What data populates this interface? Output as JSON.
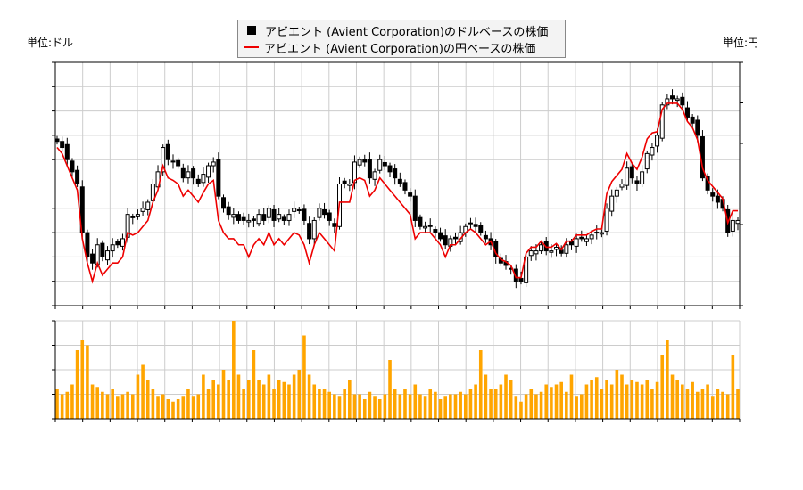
{
  "chart_data": {
    "type": "candlestick+line+bar",
    "legend": {
      "position": "top-center",
      "entries": [
        "アビエント (Avient Corporation)のドルベースの株価",
        "アビエント (Avient Corporation)の円ベースの株価"
      ]
    },
    "left_unit": "単位:ドル",
    "right_unit": "単位:円",
    "colors": {
      "candle": "#000000",
      "yen_line": "#ee0000",
      "volume": "#ffa500",
      "grid": "#cccccc"
    },
    "grid": true,
    "usd_axis": {
      "ylim": [
        26,
        46
      ],
      "ticks": [
        "26",
        "28",
        "30",
        "32",
        "34",
        "36",
        "38",
        "40",
        "42",
        "44",
        "46"
      ]
    },
    "yen_axis": {
      "ylim": [
        4000,
        7000
      ],
      "ticks": [
        "4000",
        "4500",
        "5000",
        "5500",
        "6000",
        "6500",
        "7000"
      ]
    },
    "volume_axis": {
      "ylim": [
        0,
        2000000
      ],
      "ticks": [
        "0M",
        "0M",
        "0M",
        "1M",
        "2M"
      ]
    },
    "x_ticks": [
      "2025-3-24",
      "2025-4-7",
      "2025-4-22",
      "2025-5-6",
      "2025-5-20",
      "2025-6-4",
      "2025-6-18",
      "2025-7-3",
      "2025-7-18",
      "2025-8-1",
      "2025-8-15",
      "2025-8-29",
      "2025-9-15",
      "2025-9-29",
      "2025-10-13",
      "2025-10-27",
      "2025-11-10",
      "2025-11-24",
      "2025-12-9",
      "2025-12-23",
      "2026-1-8",
      "2026-1-23",
      "2026-2-6",
      "2026-2-23",
      "2026-3-9",
      "2026-3-23"
    ],
    "usd_close": [
      39.5,
      39,
      38,
      37,
      36,
      32,
      30,
      29.5,
      31,
      30,
      30.5,
      31,
      31,
      31.5,
      33.5,
      33.3,
      33.5,
      34,
      34.5,
      36,
      37,
      39,
      38,
      37.8,
      37.5,
      36.5,
      37,
      36.5,
      36,
      36.8,
      37.5,
      37.8,
      35,
      34,
      33.5,
      33.5,
      33,
      33,
      33,
      33,
      33.5,
      33,
      34,
      33,
      33.5,
      33,
      33.5,
      34,
      33.8,
      33,
      31.5,
      33,
      34,
      33.5,
      33,
      32.5,
      36,
      36,
      36,
      37.8,
      38,
      37.8,
      36.5,
      37,
      38,
      37.5,
      37,
      36.5,
      36,
      35.5,
      35,
      33,
      32.5,
      32.5,
      32.5,
      32,
      31.5,
      31,
      31.5,
      31.5,
      32,
      32.5,
      32.8,
      32.5,
      32,
      31.5,
      31,
      30,
      29.5,
      29.3,
      29,
      28,
      28,
      30,
      30.5,
      30.5,
      31,
      30.5,
      30.5,
      30.8,
      30.3,
      31,
      31,
      31.5,
      31.5,
      31.5,
      31.8,
      32,
      32,
      34,
      35,
      35.5,
      36,
      37.3,
      36.5,
      36,
      37,
      38.5,
      39,
      40,
      42.5,
      43,
      43,
      43,
      42.5,
      41.5,
      41,
      40,
      36.5,
      35.5,
      35,
      34.5,
      34,
      32,
      33,
      33
    ],
    "yen_close": [
      5950,
      5875,
      5725,
      5575,
      5425,
      4825,
      4525,
      4300,
      4525,
      4375,
      4450,
      4525,
      4525,
      4600,
      4900,
      4870,
      4900,
      4975,
      5050,
      5275,
      5425,
      5725,
      5575,
      5545,
      5500,
      5350,
      5425,
      5350,
      5275,
      5395,
      5500,
      5545,
      5050,
      4900,
      4825,
      4825,
      4750,
      4750,
      4600,
      4750,
      4825,
      4750,
      4900,
      4750,
      4825,
      4750,
      4825,
      4900,
      4870,
      4750,
      4525,
      4750,
      4900,
      4825,
      4750,
      4675,
      5275,
      5275,
      5275,
      5545,
      5575,
      5545,
      5350,
      5425,
      5575,
      5500,
      5425,
      5350,
      5275,
      5200,
      5125,
      4825,
      4900,
      4900,
      4900,
      4825,
      4750,
      4600,
      4750,
      4750,
      4825,
      4900,
      4945,
      4900,
      4825,
      4750,
      4795,
      4645,
      4570,
      4540,
      4495,
      4345,
      4345,
      4645,
      4720,
      4720,
      4795,
      4720,
      4720,
      4765,
      4690,
      4795,
      4795,
      4870,
      4870,
      4870,
      4915,
      4945,
      4945,
      5380,
      5530,
      5605,
      5680,
      5875,
      5755,
      5680,
      5830,
      6055,
      6130,
      6145,
      6420,
      6495,
      6495,
      6495,
      6420,
      6270,
      6195,
      6045,
      5695,
      5545,
      5470,
      5395,
      5320,
      5020,
      5170,
      5170
    ],
    "volume_millions": [
      0.6,
      0.5,
      0.55,
      0.7,
      1.4,
      1.6,
      1.5,
      0.7,
      0.65,
      0.55,
      0.5,
      0.6,
      0.45,
      0.5,
      0.55,
      0.5,
      0.9,
      1.1,
      0.8,
      0.6,
      0.45,
      0.5,
      0.4,
      0.35,
      0.4,
      0.45,
      0.6,
      0.45,
      0.5,
      0.9,
      0.6,
      0.8,
      0.7,
      1.0,
      0.8,
      2.0,
      0.9,
      0.6,
      0.8,
      1.4,
      0.8,
      0.7,
      0.9,
      0.6,
      0.8,
      0.75,
      0.7,
      0.9,
      1.0,
      1.7,
      0.9,
      0.7,
      0.6,
      0.6,
      0.55,
      0.5,
      0.45,
      0.6,
      0.8,
      0.5,
      0.5,
      0.4,
      0.55,
      0.45,
      0.4,
      0.5,
      1.2,
      0.6,
      0.5,
      0.6,
      0.5,
      0.7,
      0.5,
      0.45,
      0.6,
      0.55,
      0.4,
      0.45,
      0.5,
      0.5,
      0.55,
      0.5,
      0.6,
      0.7,
      1.4,
      0.9,
      0.6,
      0.6,
      0.7,
      0.9,
      0.8,
      0.45,
      0.35,
      0.5,
      0.6,
      0.5,
      0.55,
      0.7,
      0.65,
      0.7,
      0.75,
      0.55,
      0.9,
      0.45,
      0.5,
      0.7,
      0.8,
      0.85,
      0.6,
      0.8,
      0.7,
      1.0,
      0.9,
      0.7,
      0.8,
      0.75,
      0.7,
      0.8,
      0.6,
      0.75,
      1.3,
      1.6,
      0.9,
      0.8,
      0.7,
      0.6,
      0.75,
      0.55,
      0.6,
      0.7,
      0.45,
      0.6,
      0.55,
      0.5,
      1.3,
      0.6
    ]
  }
}
